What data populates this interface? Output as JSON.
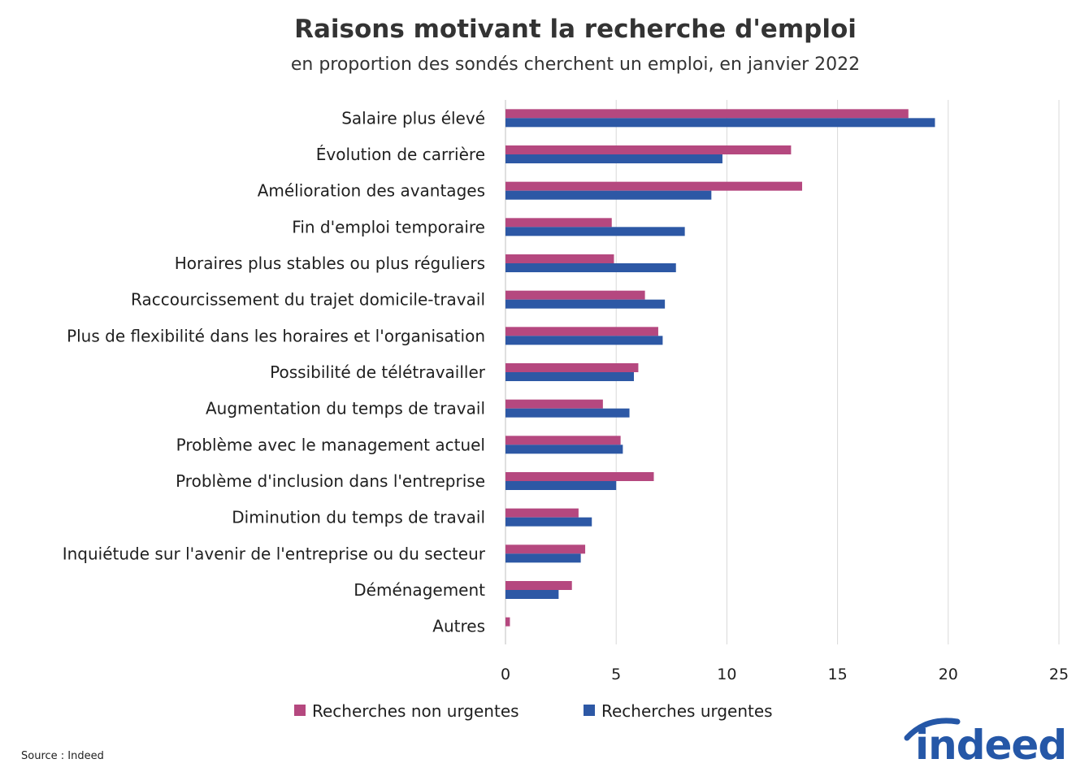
{
  "chart_data": {
    "type": "bar",
    "orientation": "horizontal",
    "title": "Raisons motivant la recherche d'emploi",
    "subtitle": "en proportion des sondés cherchent un emploi, en janvier 2022",
    "categories": [
      "Salaire plus élevé",
      "Évolution de carrière",
      "Amélioration des avantages",
      "Fin d'emploi temporaire",
      "Horaires plus stables ou plus réguliers",
      "Raccourcissement du trajet domicile-travail",
      "Plus de flexibilité dans les horaires et l'organisation",
      "Possibilité de télétravailler",
      "Augmentation du temps de travail",
      "Problème avec le management actuel",
      "Problème d'inclusion dans l'entreprise",
      "Diminution du temps de travail",
      "Inquiétude sur l'avenir de l'entreprise ou du secteur",
      "Déménagement",
      "Autres"
    ],
    "series": [
      {
        "name": "Recherches non urgentes",
        "color": "#b5487f",
        "values": [
          18.2,
          12.9,
          13.4,
          4.8,
          4.9,
          6.3,
          6.9,
          6.0,
          4.4,
          5.2,
          6.7,
          3.3,
          3.6,
          3.0,
          0.2
        ]
      },
      {
        "name": "Recherches urgentes",
        "color": "#2d58a5",
        "values": [
          19.4,
          9.8,
          9.3,
          8.1,
          7.7,
          7.2,
          7.1,
          5.8,
          5.6,
          5.3,
          5.0,
          3.9,
          3.4,
          2.4,
          0.0
        ]
      }
    ],
    "xlim": [
      0,
      25
    ],
    "xticks": [
      "0",
      "5",
      "10",
      "15",
      "20",
      "25"
    ],
    "grid": true,
    "legend_position": "bottom"
  },
  "source": "Source : Indeed",
  "logo": "indeed"
}
